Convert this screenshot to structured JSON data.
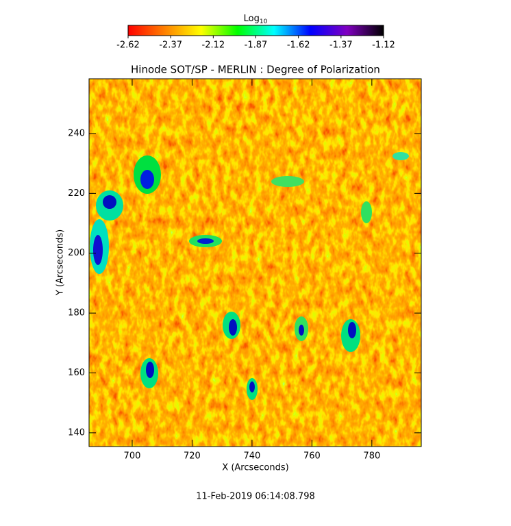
{
  "chart_data": {
    "type": "image",
    "title": "Hinode SOT/SP - MERLIN : Degree of Polarization",
    "x_label": "X (Arcseconds)",
    "y_label": "Y (Arcseconds)",
    "xlim": [
      685.6,
      796.5
    ],
    "xticks": [
      700,
      720,
      740,
      760,
      780
    ],
    "ylim": [
      135.4,
      258.3
    ],
    "yticks": [
      140,
      160,
      180,
      200,
      220,
      240
    ],
    "colorbar": {
      "label": "Log",
      "label_sub": "10",
      "clim": [
        -2.62,
        -1.12
      ],
      "ticks": [
        -2.62,
        -2.37,
        -2.12,
        -1.87,
        -1.62,
        -1.37,
        -1.12
      ],
      "colors": [
        "#ff0000",
        "#ff8000",
        "#ffff00",
        "#00ff00",
        "#00ffff",
        "#0000ff",
        "#8000c0",
        "#000000"
      ]
    },
    "timestamp": "11-Feb-2019 06:14:08.798"
  }
}
